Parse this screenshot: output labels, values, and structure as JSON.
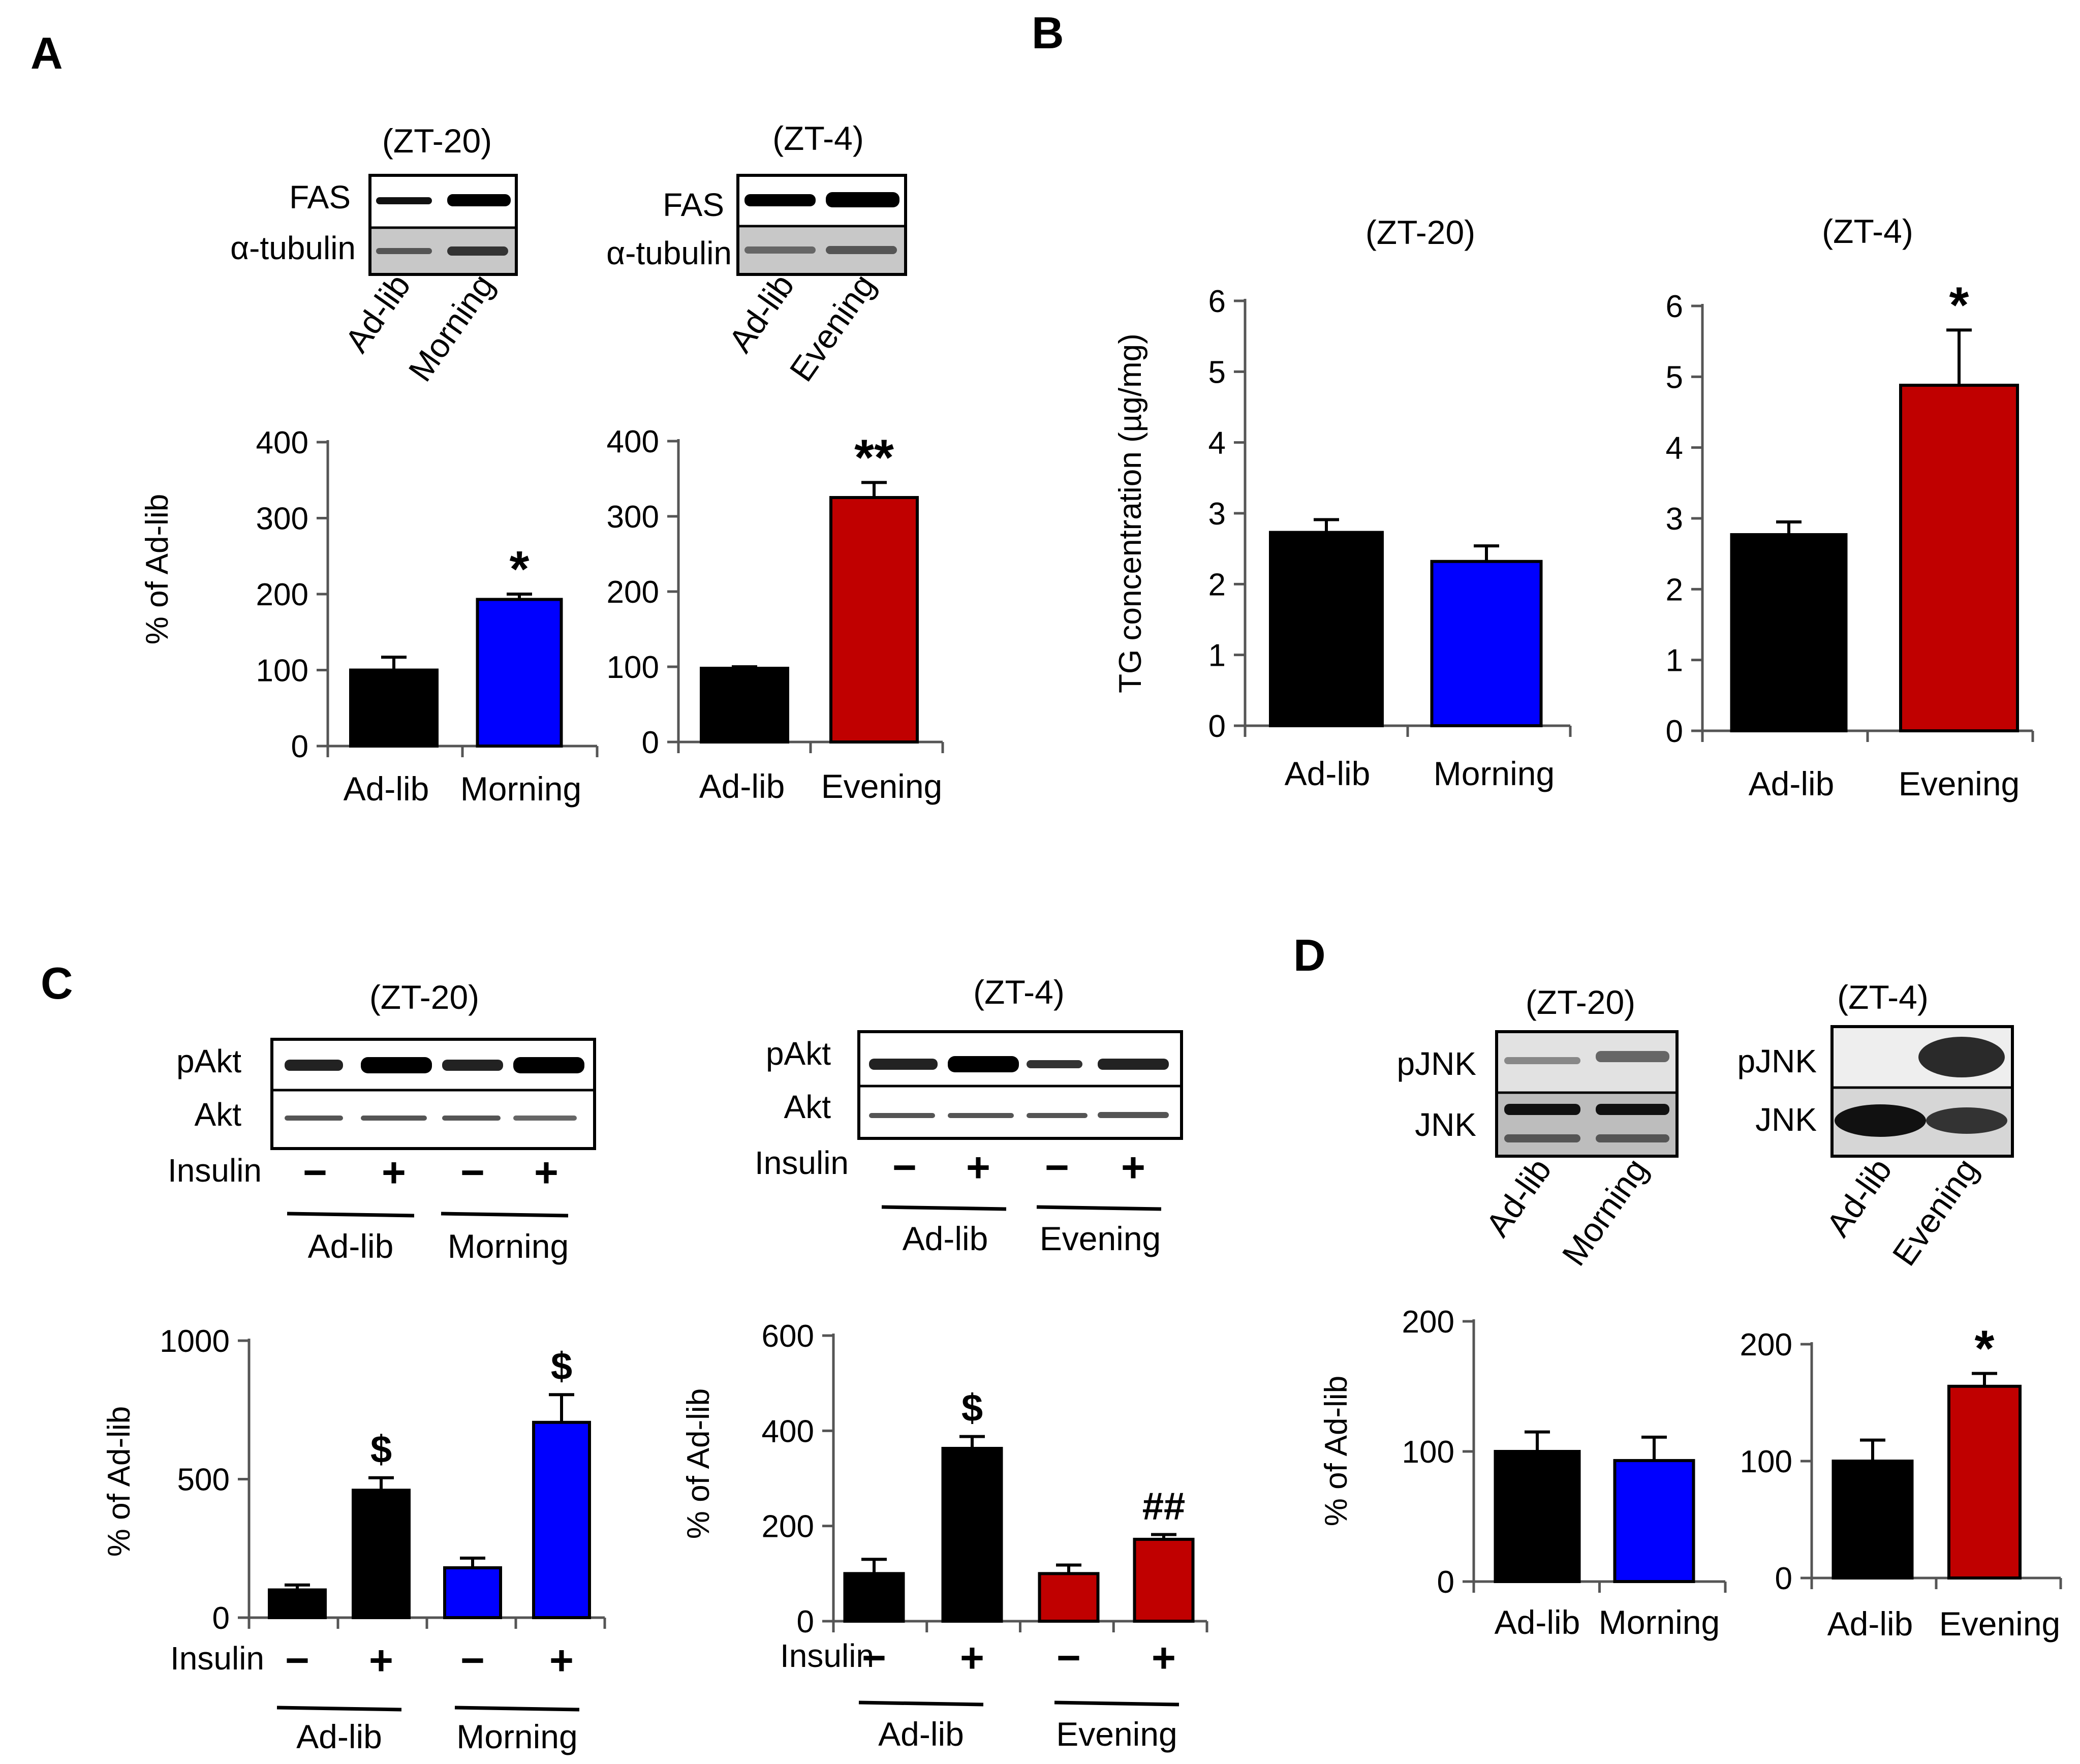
{
  "panels": {
    "A": {
      "label": "A"
    },
    "B": {
      "label": "B"
    },
    "C": {
      "label": "C"
    },
    "D": {
      "label": "D"
    }
  },
  "blots": {
    "A_left": {
      "title": "(ZT-20)",
      "rows": [
        "FAS",
        "α-tubulin"
      ],
      "lanes": [
        "Ad-lib",
        "Morning"
      ]
    },
    "A_right": {
      "title": "(ZT-4)",
      "rows": [
        "FAS",
        "α-tubulin"
      ],
      "lanes": [
        "Ad-lib",
        "Evening"
      ]
    },
    "C_left": {
      "title": "(ZT-20)",
      "rows": [
        "pAkt",
        "Akt"
      ],
      "insulin_label": "Insulin",
      "insulin_signs": [
        "−",
        "+",
        "−",
        "+"
      ],
      "groups": [
        "Ad-lib",
        "Morning"
      ]
    },
    "C_right": {
      "title": "(ZT-4)",
      "rows": [
        "pAkt",
        "Akt"
      ],
      "insulin_label": "Insulin",
      "insulin_signs": [
        "−",
        "+",
        "−",
        "+"
      ],
      "groups": [
        "Ad-lib",
        "Evening"
      ]
    },
    "D_left": {
      "title": "(ZT-20)",
      "rows": [
        "pJNK",
        "JNK"
      ],
      "lanes": [
        "Ad-lib",
        "Morning"
      ]
    },
    "D_right": {
      "title": "(ZT-4)",
      "rows": [
        "pJNK",
        "JNK"
      ],
      "lanes": [
        "Ad-lib",
        "Evening"
      ]
    }
  },
  "colors": {
    "adlib": "#000000",
    "morning": "#0000ff",
    "evening": "#c00000"
  },
  "chart_data": [
    {
      "id": "A_left",
      "type": "bar",
      "categories": [
        "Ad-lib",
        "Morning"
      ],
      "values": [
        100,
        193
      ],
      "errors": [
        17,
        7
      ],
      "colors": [
        "#000000",
        "#0000ff"
      ],
      "ylim": [
        0,
        400
      ],
      "yticks": [
        0,
        100,
        200,
        300,
        400
      ],
      "ylabel": "% of Ad-lib",
      "annotations": [
        "",
        "*"
      ]
    },
    {
      "id": "A_right",
      "type": "bar",
      "categories": [
        "Ad-lib",
        "Evening"
      ],
      "values": [
        98,
        325
      ],
      "errors": [
        2,
        20
      ],
      "colors": [
        "#000000",
        "#c00000"
      ],
      "ylim": [
        0,
        400
      ],
      "yticks": [
        0,
        100,
        200,
        300,
        400
      ],
      "ylabel": "",
      "annotations": [
        "",
        "**"
      ]
    },
    {
      "id": "B_left",
      "type": "bar",
      "title": "(ZT-20)",
      "categories": [
        "Ad-lib",
        "Morning"
      ],
      "values": [
        2.73,
        2.32
      ],
      "errors": [
        0.18,
        0.22
      ],
      "colors": [
        "#000000",
        "#0000ff"
      ],
      "ylim": [
        0,
        6
      ],
      "yticks": [
        0,
        1,
        2,
        3,
        4,
        5,
        6
      ],
      "ylabel": "TG concentration (µg/mg)",
      "annotations": [
        "",
        ""
      ]
    },
    {
      "id": "B_right",
      "type": "bar",
      "title": "(ZT-4)",
      "categories": [
        "Ad-lib",
        "Evening"
      ],
      "values": [
        2.77,
        4.88
      ],
      "errors": [
        0.18,
        0.78
      ],
      "colors": [
        "#000000",
        "#c00000"
      ],
      "ylim": [
        0,
        6
      ],
      "yticks": [
        0,
        1,
        2,
        3,
        4,
        5,
        6
      ],
      "ylabel": "",
      "annotations": [
        "",
        "*"
      ]
    },
    {
      "id": "C_left",
      "type": "bar",
      "categories": [
        "−",
        "+",
        "−",
        "+"
      ],
      "groups": [
        "Ad-lib",
        "Morning"
      ],
      "xlabel": "Insulin",
      "values": [
        100,
        460,
        180,
        705
      ],
      "errors": [
        18,
        45,
        35,
        100
      ],
      "colors": [
        "#000000",
        "#000000",
        "#0000ff",
        "#0000ff"
      ],
      "ylim": [
        0,
        1000
      ],
      "yticks": [
        0,
        500,
        1000
      ],
      "ylabel": "% of Ad-lib",
      "annotations": [
        "",
        "$",
        "",
        "$"
      ]
    },
    {
      "id": "C_right",
      "type": "bar",
      "categories": [
        "−",
        "+",
        "−",
        "+"
      ],
      "groups": [
        "Ad-lib",
        "Evening"
      ],
      "xlabel": "Insulin",
      "values": [
        100,
        363,
        100,
        172
      ],
      "errors": [
        30,
        25,
        18,
        10
      ],
      "colors": [
        "#000000",
        "#000000",
        "#c00000",
        "#c00000"
      ],
      "ylim": [
        0,
        600
      ],
      "yticks": [
        0,
        200,
        400,
        600
      ],
      "ylabel": "% of Ad-lib",
      "annotations": [
        "",
        "$",
        "",
        "##"
      ]
    },
    {
      "id": "D_left",
      "type": "bar",
      "categories": [
        "Ad-lib",
        "Morning"
      ],
      "values": [
        100,
        93
      ],
      "errors": [
        15,
        18
      ],
      "colors": [
        "#000000",
        "#0000ff"
      ],
      "ylim": [
        0,
        200
      ],
      "yticks": [
        0,
        100,
        200
      ],
      "ylabel": "% of Ad-lib",
      "annotations": [
        "",
        ""
      ]
    },
    {
      "id": "D_right",
      "type": "bar",
      "categories": [
        "Ad-lib",
        "Evening"
      ],
      "values": [
        100,
        164
      ],
      "errors": [
        18,
        11
      ],
      "colors": [
        "#000000",
        "#c00000"
      ],
      "ylim": [
        0,
        200
      ],
      "yticks": [
        0,
        100,
        200
      ],
      "ylabel": "",
      "annotations": [
        "",
        "*"
      ]
    }
  ]
}
